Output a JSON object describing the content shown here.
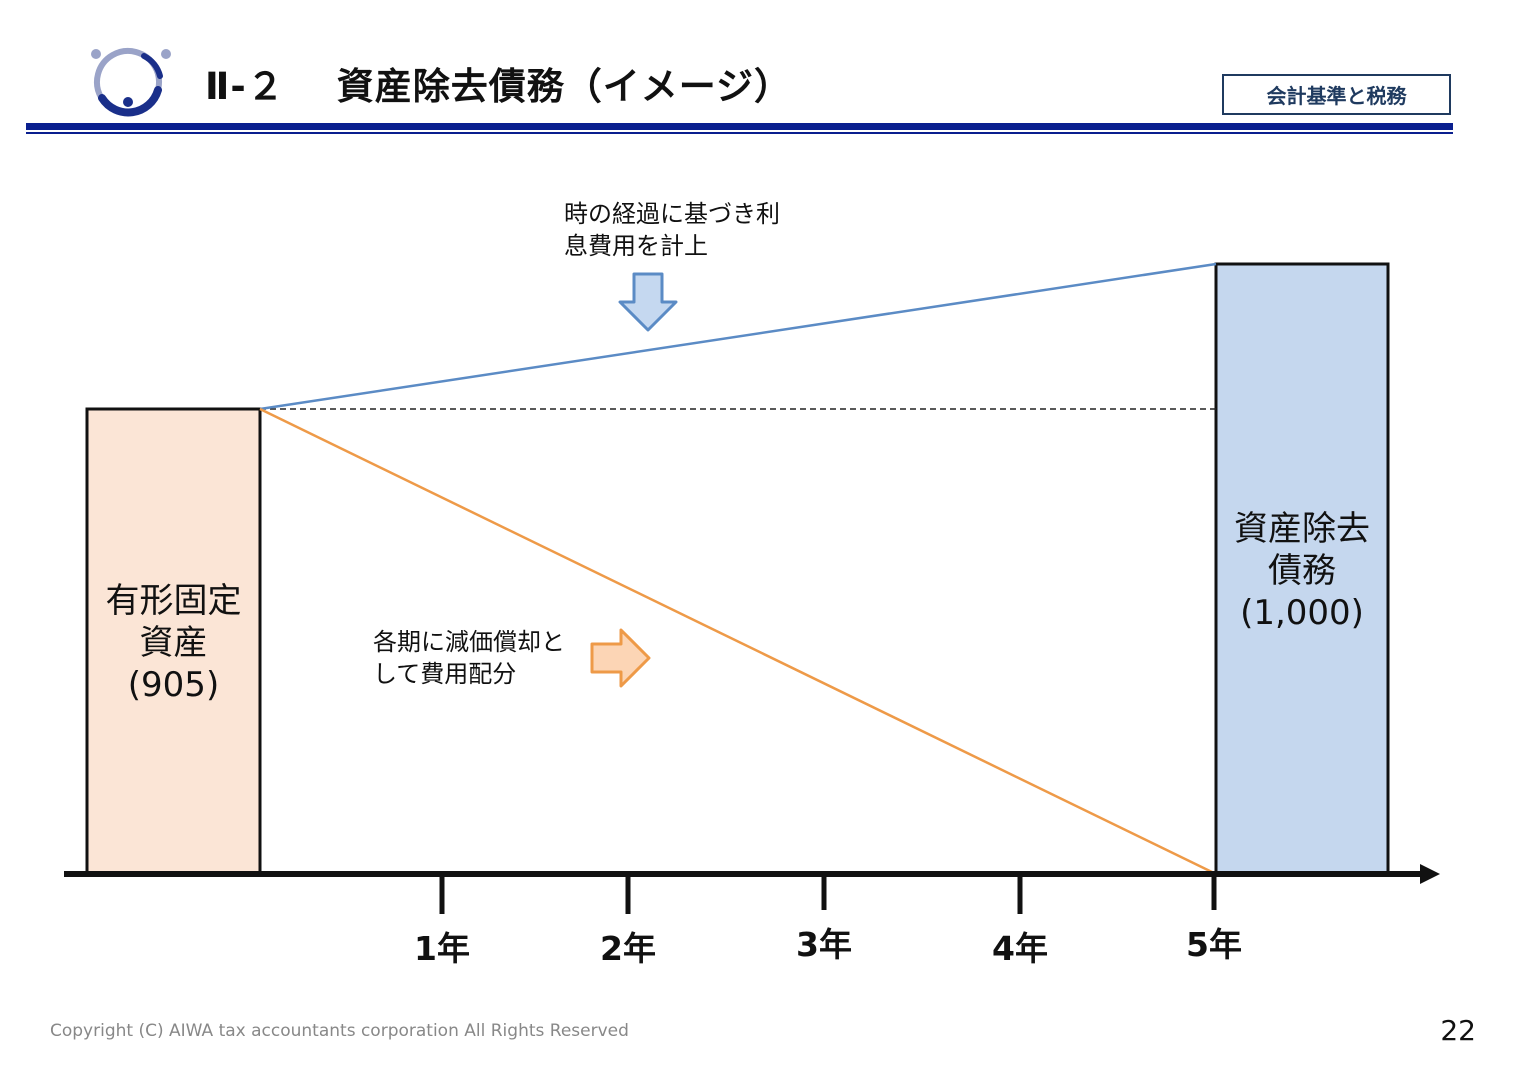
{
  "header": {
    "section_number": "Ⅱ-２",
    "title": "資産除去債務（イメージ）",
    "category_tag": "会計基準と税務",
    "logo_icon": "company-ring-logo"
  },
  "diagram": {
    "left_box": {
      "line1": "有形固定",
      "line2": "資産",
      "value": "(905)",
      "fill": "#fbe5d6"
    },
    "right_box": {
      "line1": "資産除去",
      "line2": "債務",
      "value": "(1,000)",
      "fill": "#c5d7ee"
    },
    "interest_note": {
      "line1": "時の経過に基づき利",
      "line2": "息費用を計上"
    },
    "depreciation_note": {
      "line1": "各期に減価償却と",
      "line2": "して費用配分"
    },
    "years": [
      "1年",
      "2年",
      "3年",
      "4年",
      "5年"
    ],
    "colors": {
      "interest_line": "#5b8bc5",
      "depreciation_line": "#ee9a48",
      "down_arrow_fill": "#c5d8f0",
      "right_arrow_fill": "#fcd5b5"
    }
  },
  "footer": {
    "copyright": "Copyright (C) AIWA tax accountants corporation All Rights Reserved",
    "page_number": "22"
  }
}
